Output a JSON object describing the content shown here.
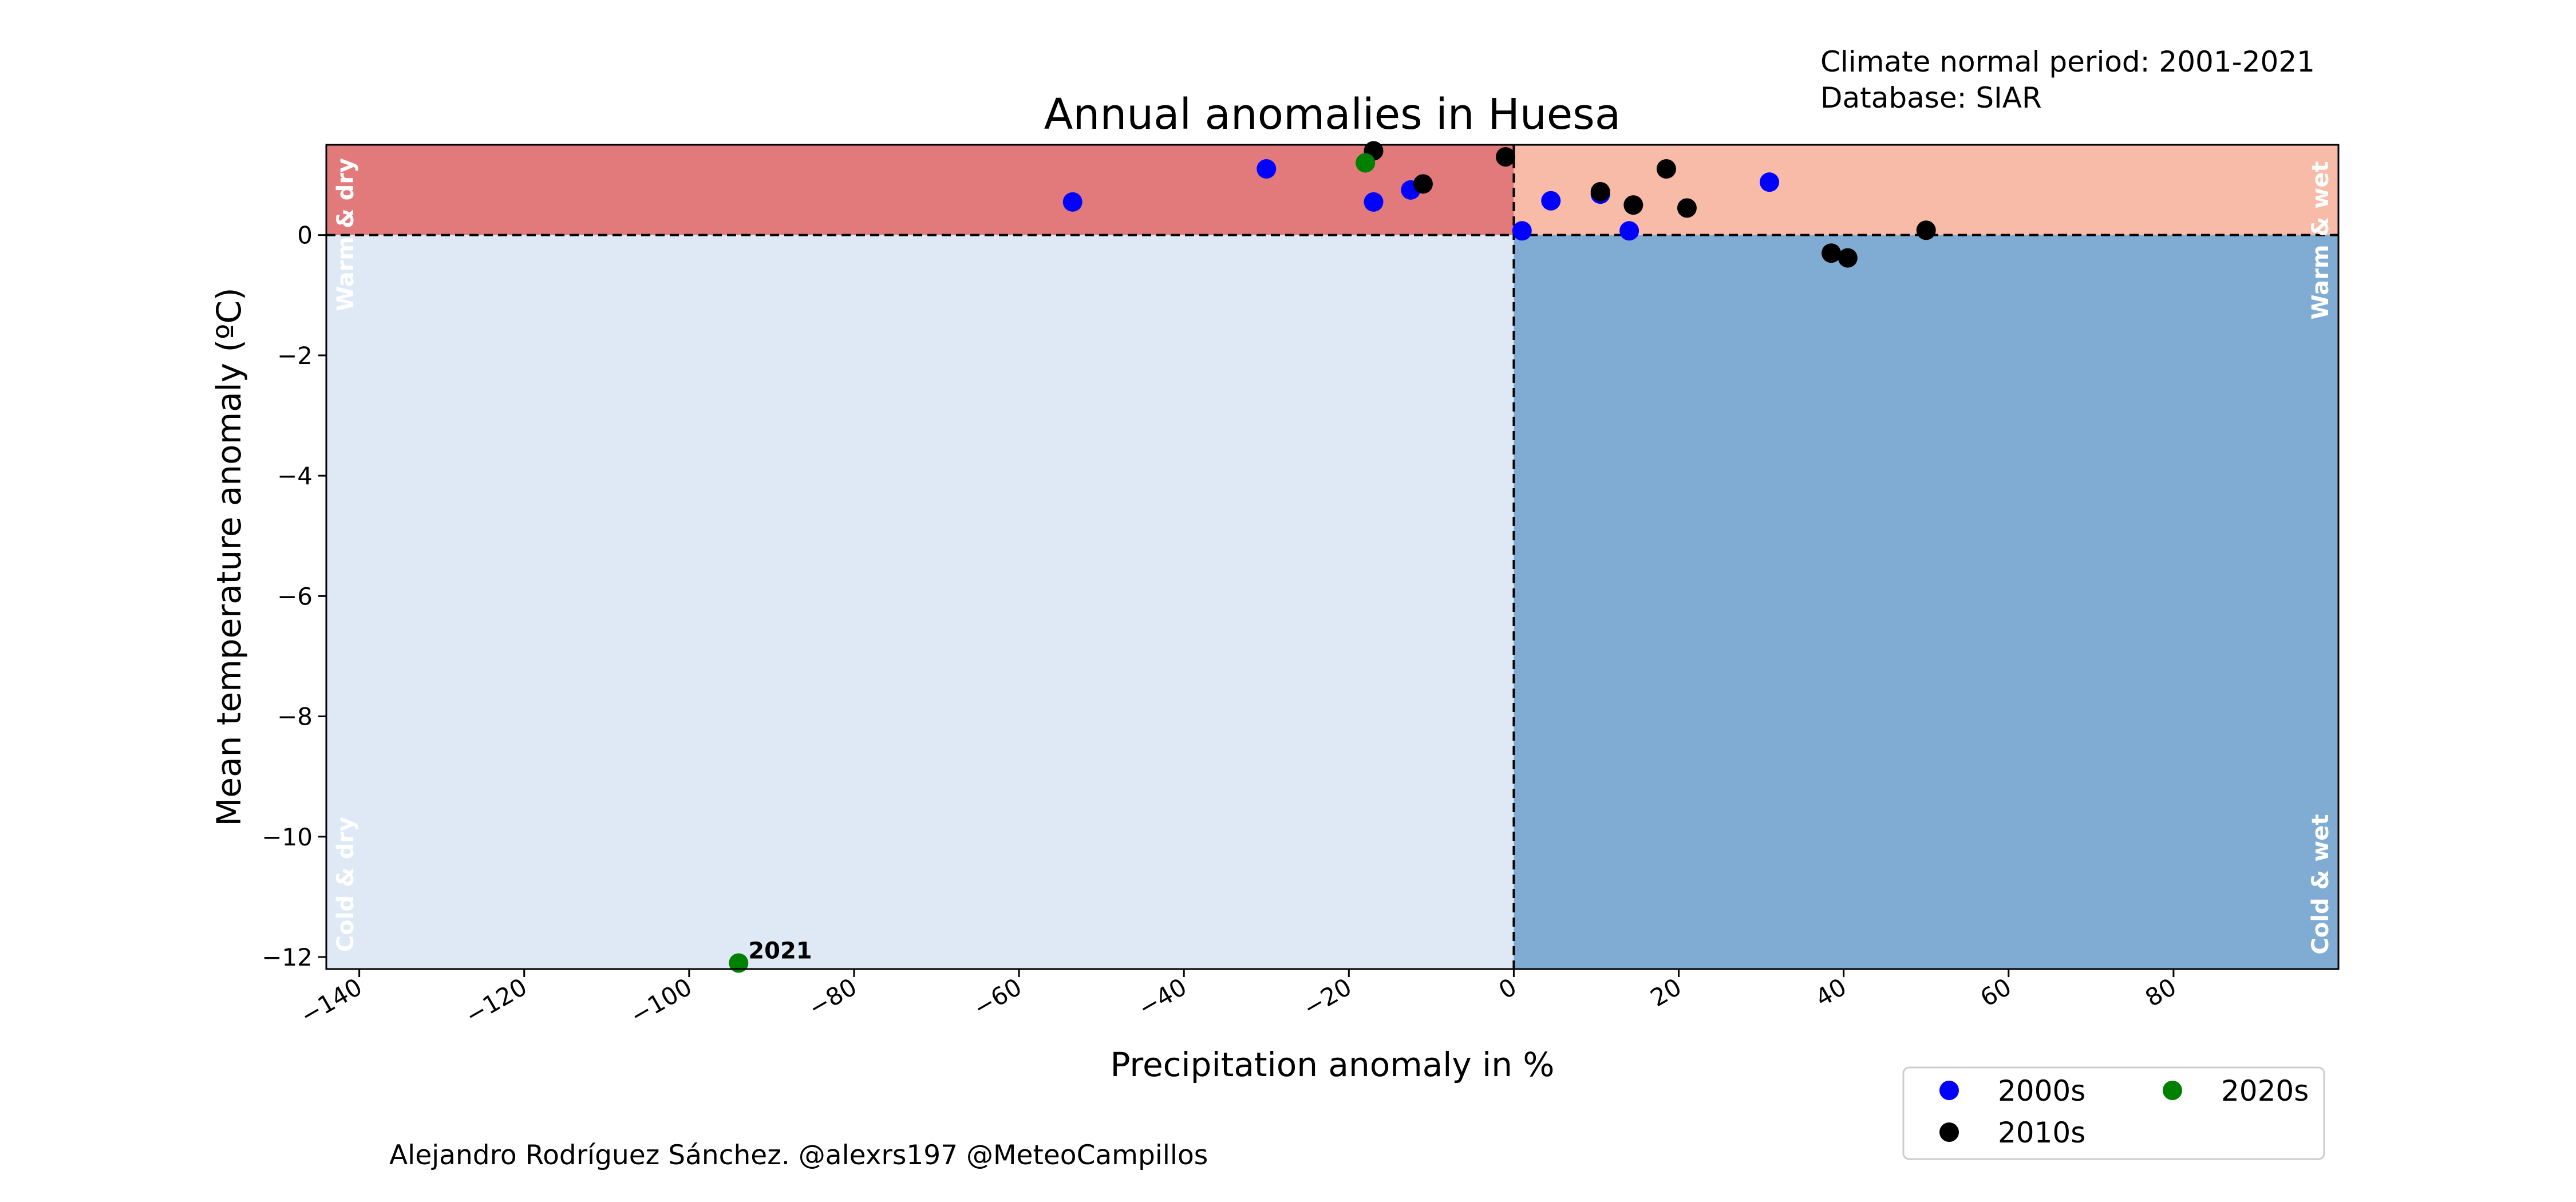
{
  "chart_data": {
    "type": "scatter",
    "title": "Annual anomalies in Huesa",
    "xlabel": "Precipitation anomaly in %",
    "ylabel": "Mean temperature anomaly (ºC)",
    "xlim": [
      -144,
      100
    ],
    "ylim": [
      -12.2,
      1.5
    ],
    "xticks": [
      -140,
      -120,
      -100,
      -80,
      -60,
      -40,
      -20,
      0,
      20,
      40,
      60,
      80
    ],
    "xtick_labels": [
      "−140",
      "−120",
      "−100",
      "−80",
      "−60",
      "−40",
      "−20",
      "0",
      "20",
      "40",
      "60",
      "80"
    ],
    "yticks": [
      0,
      -2,
      -4,
      -6,
      -8,
      -10,
      -12
    ],
    "ytick_labels": [
      "0",
      "−2",
      "−4",
      "−6",
      "−8",
      "−10",
      "−12"
    ],
    "grid": false,
    "reference_lines": {
      "x": 0,
      "y": 0,
      "style": "dashed"
    },
    "quadrants": [
      {
        "label": "Warm & dry",
        "color": "#e27a7c"
      },
      {
        "label": "Warm & wet",
        "color": "#f7bba7"
      },
      {
        "label": "Cold & dry",
        "color": "#dee9f5"
      },
      {
        "label": "Cold & wet",
        "color": "#80acd4"
      }
    ],
    "series": [
      {
        "name": "2000s",
        "color": "#0000ff",
        "points": [
          {
            "x": -53.5,
            "y": 0.55
          },
          {
            "x": -30,
            "y": 1.1
          },
          {
            "x": -17,
            "y": 0.55
          },
          {
            "x": -12.5,
            "y": 0.75
          },
          {
            "x": 1,
            "y": 0.07
          },
          {
            "x": 4.5,
            "y": 0.57
          },
          {
            "x": 10.5,
            "y": 0.68
          },
          {
            "x": 14,
            "y": 0.07
          },
          {
            "x": 31,
            "y": 0.88
          }
        ]
      },
      {
        "name": "2010s",
        "color": "#000000",
        "points": [
          {
            "x": -17,
            "y": 1.4
          },
          {
            "x": -11,
            "y": 0.85
          },
          {
            "x": -1,
            "y": 1.3
          },
          {
            "x": 10.5,
            "y": 0.72
          },
          {
            "x": 14.5,
            "y": 0.5
          },
          {
            "x": 18.5,
            "y": 1.1
          },
          {
            "x": 21,
            "y": 0.45
          },
          {
            "x": 38.5,
            "y": -0.3
          },
          {
            "x": 40.5,
            "y": -0.38
          },
          {
            "x": 50,
            "y": 0.08
          }
        ]
      },
      {
        "name": "2020s",
        "color": "#008000",
        "points": [
          {
            "x": -18,
            "y": 1.2
          },
          {
            "x": -94,
            "y": -12.1,
            "label": "2021"
          }
        ]
      }
    ],
    "legend": {
      "placement": "lower-right-outside",
      "ncol": 2
    }
  },
  "info": {
    "line1": "Climate normal period: 2001-2021",
    "line2": "Database: SIAR"
  },
  "footer": "Alejandro Rodríguez Sánchez. @alexrs197 @MeteoCampillos"
}
